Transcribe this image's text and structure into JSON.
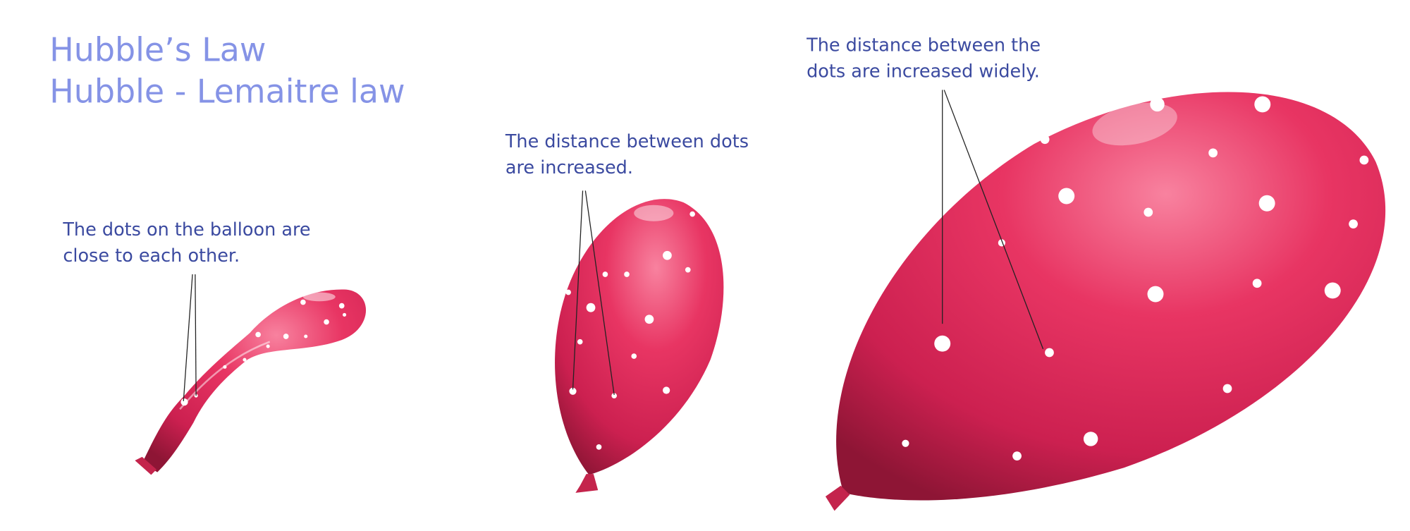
{
  "title": {
    "lines": [
      "Hubble’s Law",
      "Hubble - Lemaitre law"
    ]
  },
  "annotations": [
    {
      "lines": [
        "The dots on the balloon are",
        "close to each other."
      ]
    },
    {
      "lines": [
        "The distance between dots",
        "are increased."
      ]
    },
    {
      "lines": [
        "The distance between the",
        "dots are increased widely."
      ]
    }
  ]
}
